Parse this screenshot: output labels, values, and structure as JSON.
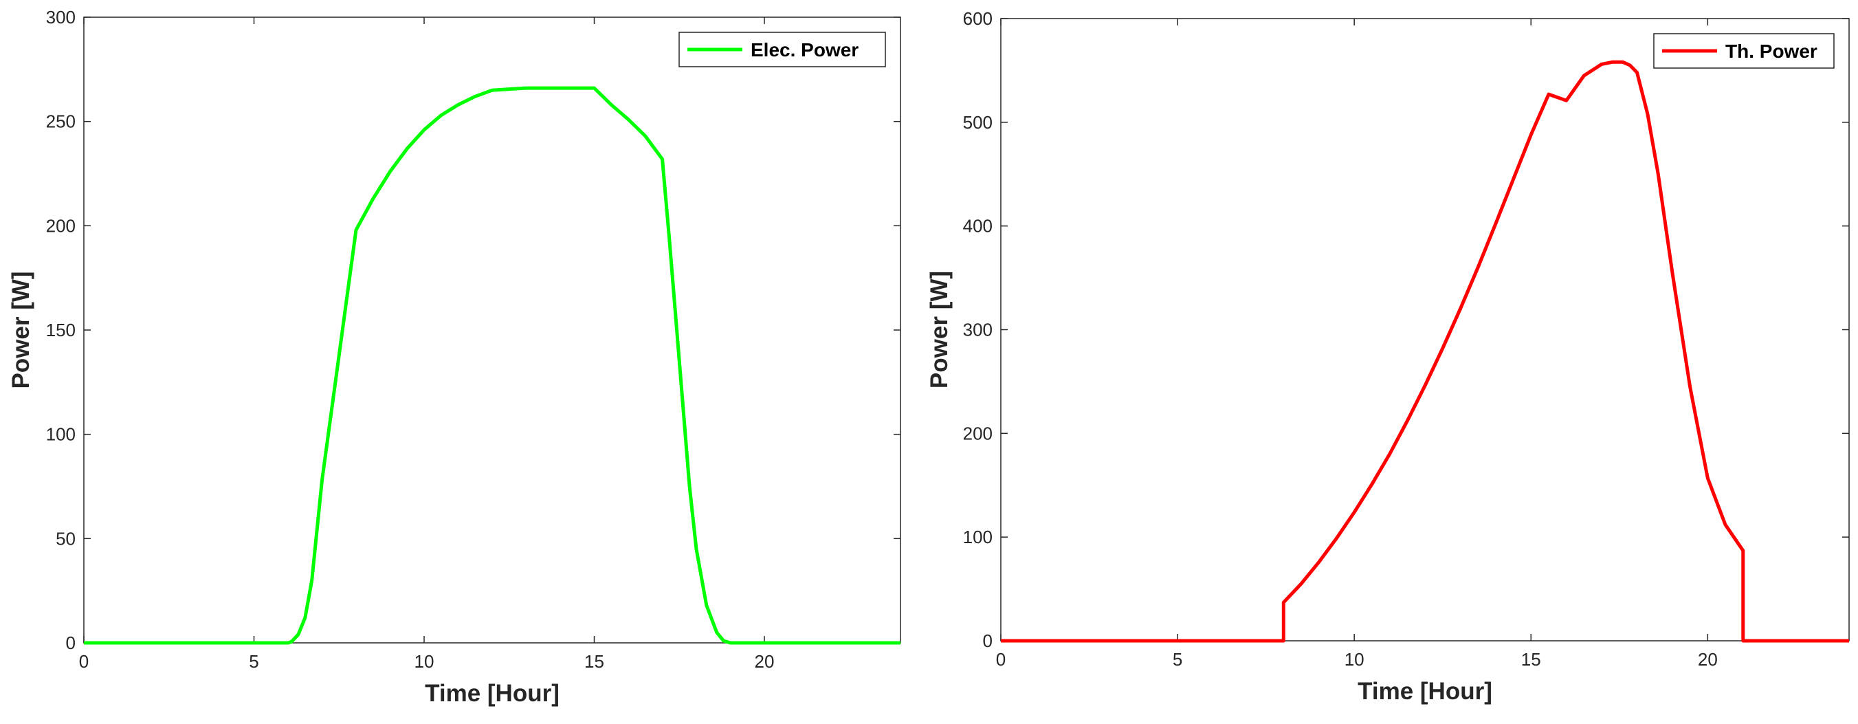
{
  "chart_data": [
    {
      "type": "line",
      "xlabel": "Time [Hour]",
      "ylabel": "Power [W]",
      "xlim": [
        0,
        24
      ],
      "ylim": [
        0,
        300
      ],
      "xticks": [
        0,
        5,
        10,
        15,
        20
      ],
      "yticks": [
        0,
        50,
        100,
        150,
        200,
        250,
        300
      ],
      "grid": false,
      "legend_position": "top-right",
      "series": [
        {
          "name": "Elec. Power",
          "color": "#00ff00",
          "x": [
            0,
            6,
            6.1,
            6.3,
            6.5,
            6.7,
            7.0,
            7.5,
            8.0,
            8.5,
            9,
            9.5,
            10,
            10.5,
            11,
            11.5,
            12,
            12.5,
            13,
            13.5,
            14,
            14.5,
            15,
            15.5,
            16,
            16.5,
            17,
            17.2,
            17.5,
            17.8,
            18.0,
            18.3,
            18.6,
            18.8,
            19.0,
            24
          ],
          "y": [
            0,
            0,
            0.5,
            4,
            12,
            30,
            78,
            138,
            198,
            213,
            226,
            237,
            246,
            253,
            258,
            262,
            265,
            265.5,
            266,
            266,
            266,
            266,
            266,
            258,
            251,
            243,
            232,
            195,
            135,
            75,
            45,
            18,
            5,
            1,
            0,
            0
          ]
        }
      ]
    },
    {
      "type": "line",
      "xlabel": "Time [Hour]",
      "ylabel": "Power [W]",
      "xlim": [
        0,
        24
      ],
      "ylim": [
        0,
        600
      ],
      "xticks": [
        0,
        5,
        10,
        15,
        20
      ],
      "yticks": [
        0,
        100,
        200,
        300,
        400,
        500,
        600
      ],
      "grid": false,
      "legend_position": "top-right",
      "series": [
        {
          "name": "Th. Power",
          "color": "#ff0000",
          "x": [
            0,
            8,
            8,
            8.5,
            9,
            9.5,
            10,
            10.5,
            11,
            11.5,
            12,
            12.5,
            13,
            13.5,
            14,
            14.5,
            15,
            15.5,
            16,
            16.5,
            17,
            17.3,
            17.6,
            17.8,
            18,
            18.3,
            18.6,
            19,
            19.5,
            20,
            20.5,
            21,
            21,
            24
          ],
          "y": [
            0,
            0,
            37,
            55,
            76,
            99,
            124,
            151,
            180,
            212,
            246,
            282,
            320,
            360,
            402,
            445,
            488,
            527,
            521,
            545,
            556,
            558,
            558,
            555,
            548,
            508,
            450,
            355,
            245,
            157,
            112,
            87,
            0,
            0
          ]
        }
      ]
    }
  ]
}
